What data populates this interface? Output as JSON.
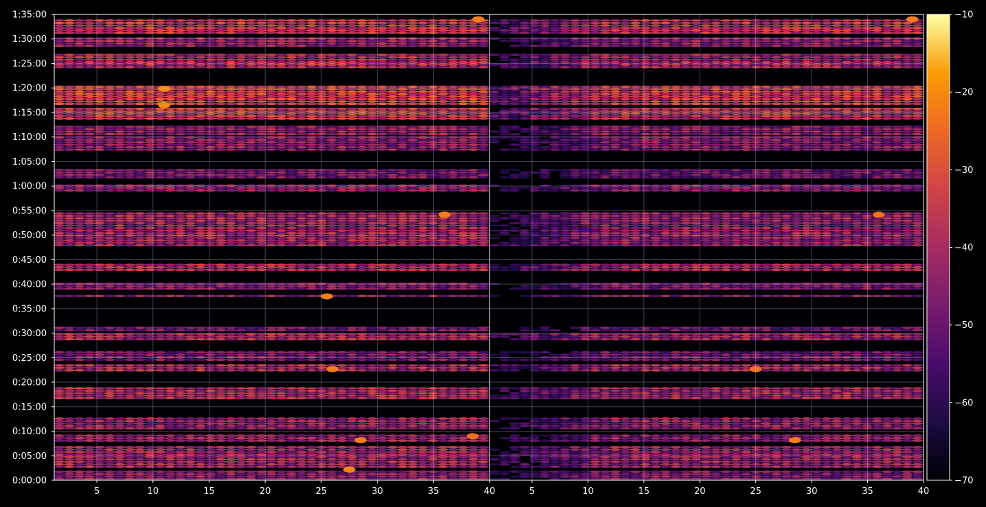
{
  "chart_data": {
    "type": "heatmap",
    "title": "",
    "xlabel": "",
    "ylabel": "",
    "panels": [
      {
        "name": "",
        "xlim": [
          1.2,
          40
        ],
        "x_ticks": [
          5,
          10,
          15,
          20,
          25,
          30,
          35,
          40
        ],
        "x_tick_labels": [
          "5",
          "10",
          "15",
          "20",
          "25",
          "30",
          "35",
          "40"
        ]
      },
      {
        "name": "",
        "xlim": [
          1.2,
          40
        ],
        "x_ticks": [
          5,
          10,
          15,
          20,
          25,
          30,
          35,
          40
        ],
        "x_tick_labels": [
          "5",
          "10",
          "15",
          "20",
          "25",
          "30",
          "35",
          "40"
        ]
      }
    ],
    "y_unit": "seconds",
    "ylim": [
      0,
      5700
    ],
    "y_ticks": [
      0,
      300,
      600,
      900,
      1200,
      1500,
      1800,
      2100,
      2400,
      2700,
      3000,
      3300,
      3600,
      3900,
      4200,
      4500,
      4800,
      5100,
      5400,
      5700
    ],
    "y_tick_labels": [
      "0:00:00",
      "0:05:00",
      "0:10:00",
      "0:15:00",
      "0:20:00",
      "0:25:00",
      "0:30:00",
      "0:35:00",
      "0:40:00",
      "0:45:00",
      "0:50:00",
      "0:55:00",
      "1:00:00",
      "1:05:00",
      "1:10:00",
      "1:15:00",
      "1:20:00",
      "1:25:00",
      "1:30:00",
      "1:35:00"
    ],
    "colorbar": {
      "colormap": "inferno",
      "vmin": -70,
      "vmax": -10,
      "ticks": [
        -70,
        -60,
        -50,
        -40,
        -30,
        -20,
        -10
      ],
      "tick_labels": [
        "−70",
        "−60",
        "−50",
        "−40",
        "−30",
        "−20",
        "−10"
      ]
    },
    "grid": true,
    "activity_bands": [
      {
        "start": 0,
        "end": 120,
        "level_db": -45
      },
      {
        "start": 150,
        "end": 420,
        "level_db": -42
      },
      {
        "start": 470,
        "end": 560,
        "level_db": -44
      },
      {
        "start": 620,
        "end": 760,
        "level_db": -43
      },
      {
        "start": 990,
        "end": 1130,
        "level_db": -40
      },
      {
        "start": 1330,
        "end": 1430,
        "level_db": -40
      },
      {
        "start": 1460,
        "end": 1590,
        "level_db": -48
      },
      {
        "start": 1710,
        "end": 1810,
        "level_db": -40
      },
      {
        "start": 1820,
        "end": 1890,
        "level_db": -48
      },
      {
        "start": 2240,
        "end": 2280,
        "level_db": -45
      },
      {
        "start": 2330,
        "end": 2430,
        "level_db": -46
      },
      {
        "start": 2560,
        "end": 2640,
        "level_db": -40
      },
      {
        "start": 2860,
        "end": 3280,
        "level_db": -42
      },
      {
        "start": 3530,
        "end": 3620,
        "level_db": -45
      },
      {
        "start": 3690,
        "end": 3820,
        "level_db": -48
      },
      {
        "start": 4030,
        "end": 4200,
        "level_db": -45
      },
      {
        "start": 4220,
        "end": 4340,
        "level_db": -44
      },
      {
        "start": 4410,
        "end": 4560,
        "level_db": -36
      },
      {
        "start": 4590,
        "end": 4840,
        "level_db": -34
      },
      {
        "start": 5040,
        "end": 5220,
        "level_db": -40
      },
      {
        "start": 5300,
        "end": 5420,
        "level_db": -44
      },
      {
        "start": 5460,
        "end": 5650,
        "level_db": -36
      }
    ],
    "hotspots": [
      {
        "panel": 0,
        "x": 27.5,
        "y": 130,
        "value_db": -20
      },
      {
        "panel": 0,
        "x": 28.5,
        "y": 490,
        "value_db": -22
      },
      {
        "panel": 0,
        "x": 38.5,
        "y": 540,
        "value_db": -24
      },
      {
        "panel": 0,
        "x": 26,
        "y": 1360,
        "value_db": -22
      },
      {
        "panel": 0,
        "x": 25.5,
        "y": 2250,
        "value_db": -22
      },
      {
        "panel": 0,
        "x": 36,
        "y": 3250,
        "value_db": -22
      },
      {
        "panel": 0,
        "x": 11,
        "y": 4590,
        "value_db": -20
      },
      {
        "panel": 0,
        "x": 11,
        "y": 4790,
        "value_db": -20
      },
      {
        "panel": 0,
        "x": 39,
        "y": 5640,
        "value_db": -22
      },
      {
        "panel": 1,
        "x": 28.5,
        "y": 490,
        "value_db": -22
      },
      {
        "panel": 1,
        "x": 25,
        "y": 1360,
        "value_db": -24
      },
      {
        "panel": 1,
        "x": 36,
        "y": 3250,
        "value_db": -24
      },
      {
        "panel": 1,
        "x": 39,
        "y": 5640,
        "value_db": -22
      }
    ]
  }
}
